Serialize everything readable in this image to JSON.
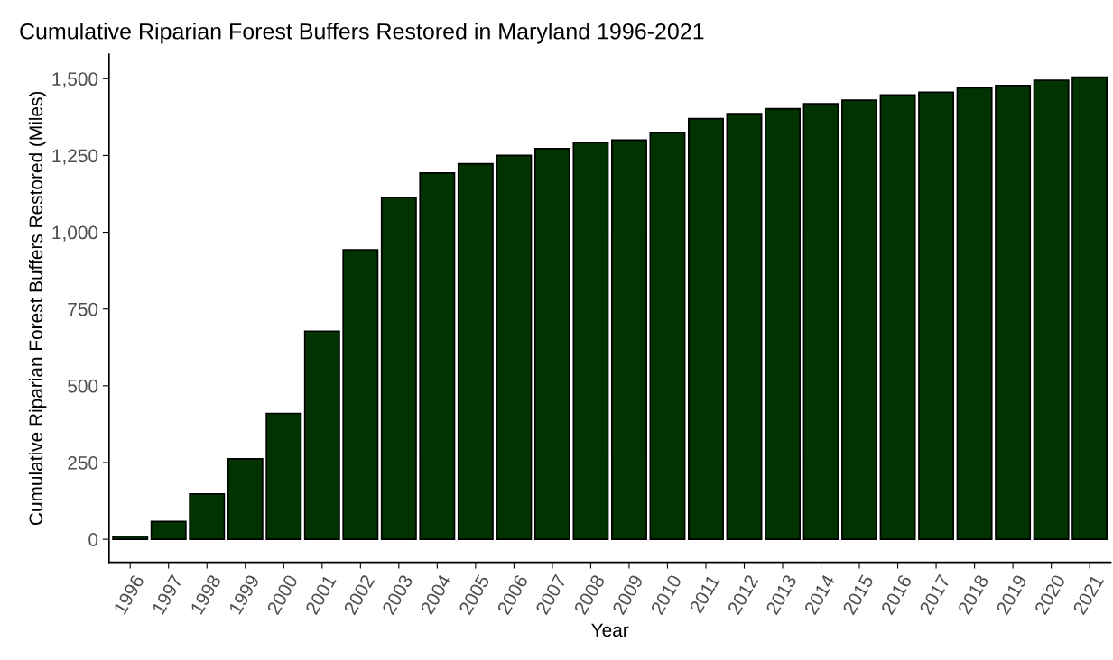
{
  "chart_data": {
    "type": "bar",
    "title": "Cumulative Riparian Forest Buffers Restored in Maryland 1996-2021",
    "xlabel": "Year",
    "ylabel": "Cumulative Riparian Forest Buffers Restored (Miles)",
    "categories": [
      "1996",
      "1997",
      "1998",
      "1999",
      "2000",
      "2001",
      "2002",
      "2003",
      "2004",
      "2005",
      "2006",
      "2007",
      "2008",
      "2009",
      "2010",
      "2011",
      "2012",
      "2013",
      "2014",
      "2015",
      "2016",
      "2017",
      "2018",
      "2019",
      "2020",
      "2021"
    ],
    "values": [
      10,
      58,
      148,
      262,
      410,
      678,
      943,
      1113,
      1193,
      1223,
      1250,
      1272,
      1292,
      1300,
      1325,
      1370,
      1386,
      1402,
      1418,
      1430,
      1447,
      1456,
      1470,
      1478,
      1495,
      1505
    ],
    "color": "#013301",
    "ylim": [
      -75,
      1580
    ],
    "yticks": [
      0,
      {
        "value": 250,
        "label": "250"
      },
      {
        "value": 500,
        "label": "500"
      },
      {
        "value": 750,
        "label": "750"
      },
      {
        "value": 1000,
        "label": "1,000"
      },
      {
        "value": 1250,
        "label": "1,250"
      },
      {
        "value": 1500,
        "label": "1,500"
      }
    ],
    "grid": false,
    "legend": false
  }
}
